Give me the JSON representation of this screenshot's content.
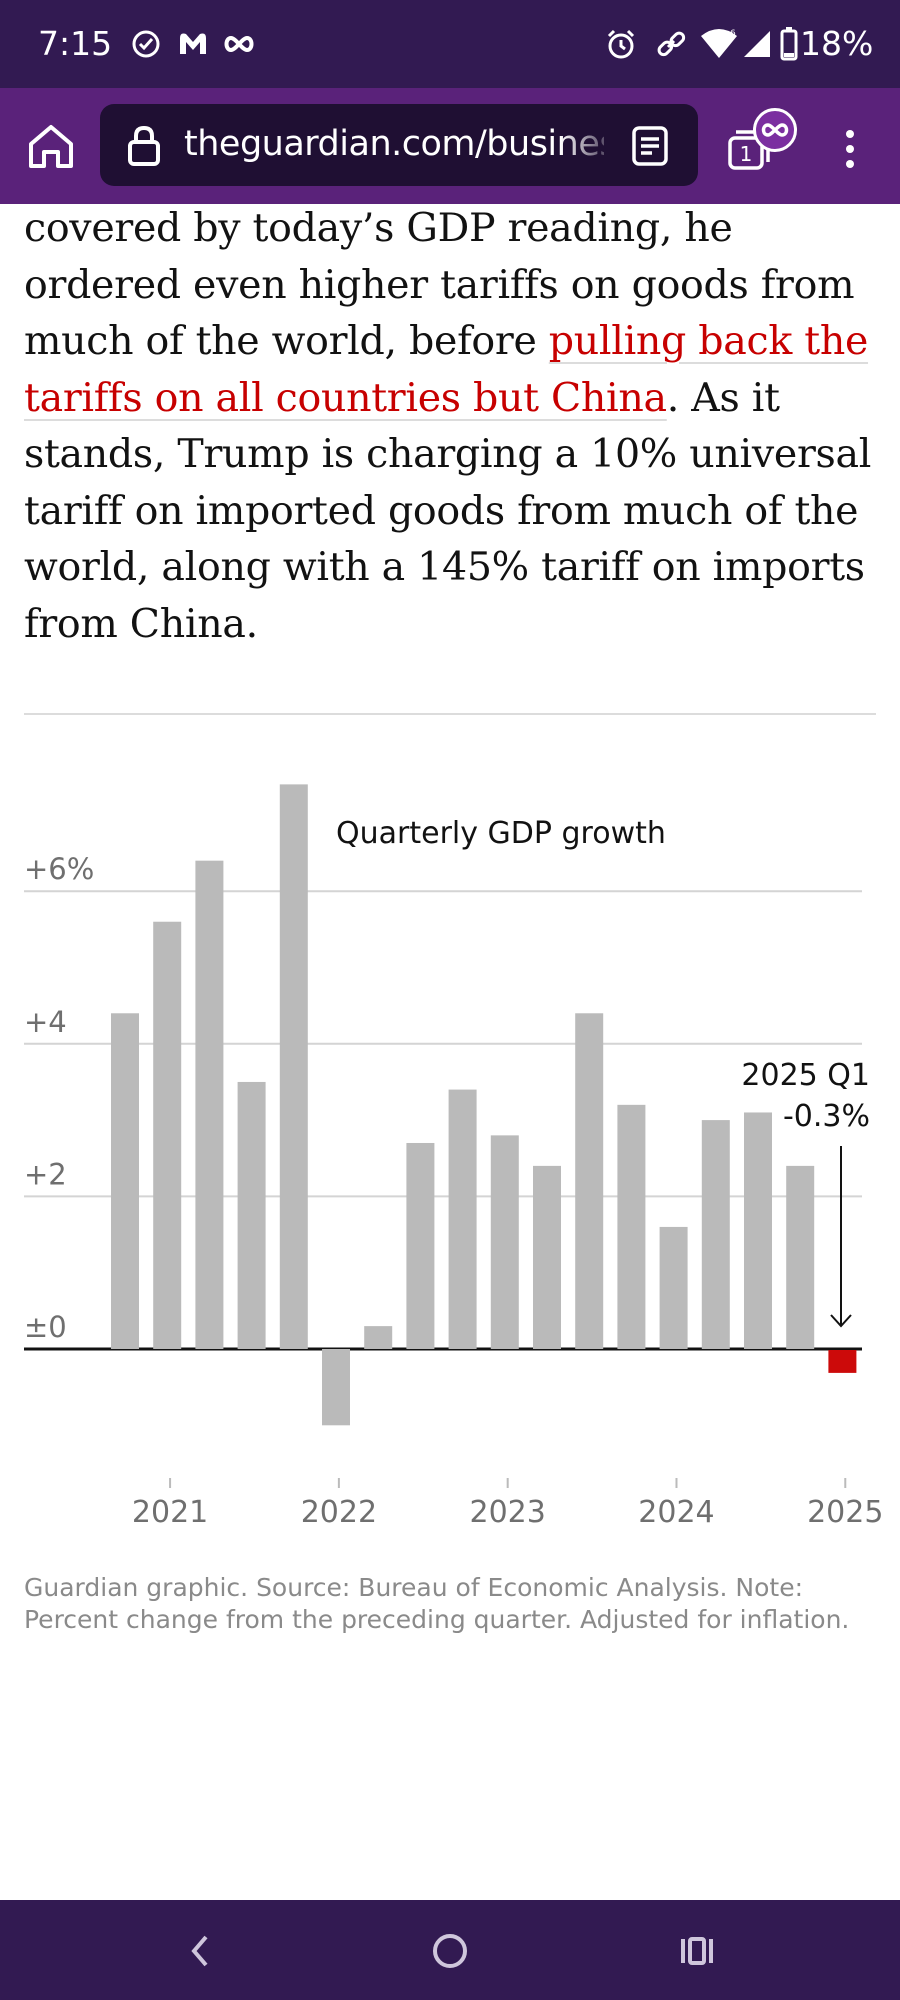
{
  "status_bar": {
    "time": "7:15",
    "battery": "18%",
    "icons": [
      "check-circle-icon",
      "app-m-icon",
      "infinity-icon",
      "alarm-icon",
      "link-icon",
      "wifi-icon",
      "signal-icon",
      "battery-icon"
    ]
  },
  "toolbar": {
    "url": "theguardian.com/business",
    "tab_count": "1",
    "tab_badge": "∞"
  },
  "article": {
    "text_before_link": "covered by today’s GDP reading, he ordered even higher tariffs on goods from much of the world, before ",
    "link_text": "pulling back the tariffs on all countries but China",
    "text_after_link": ". As it stands, Trump is charging a 10% universal tariff on imported goods from much of the world, along with a 145% tariff on imports from China.",
    "link_color": "#c70000"
  },
  "chart_data": {
    "type": "bar",
    "title": "Quarterly GDP growth",
    "x_tick_labels": [
      "2021",
      "2022",
      "2023",
      "2024",
      "2025"
    ],
    "y_tick_labels": [
      "+6%",
      "+4",
      "+2",
      "±0"
    ],
    "y_ticks": [
      6,
      4,
      2,
      0
    ],
    "ylim": [
      -1.2,
      7.5
    ],
    "values": [
      4.4,
      5.6,
      6.4,
      3.5,
      7.4,
      -1.0,
      0.3,
      2.7,
      3.4,
      2.8,
      2.4,
      4.4,
      3.2,
      1.6,
      3.0,
      3.1,
      2.4,
      -0.3
    ],
    "bar_color": "#bababa",
    "highlight_color": "#cc0a0a",
    "annotation": {
      "label": "2025 Q1",
      "value_label": "-0.3%"
    }
  },
  "footnote": "Guardian graphic. Source: Bureau of Economic Analysis. Note: Percent change from the preceding quarter. Adjusted for inflation."
}
